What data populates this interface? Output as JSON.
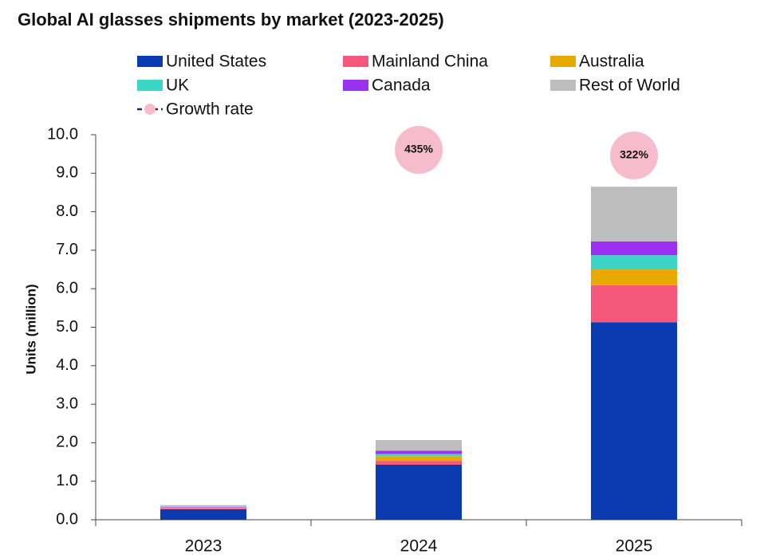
{
  "chart_data": {
    "type": "stacked-bar",
    "title": "Global AI glasses shipments by market (2023-2025)",
    "y_label": "Units (million)",
    "categories": [
      "2023",
      "2024",
      "2025"
    ],
    "series": [
      {
        "name": "United States",
        "color": "#0a3bb0",
        "values": [
          0.27,
          1.43,
          5.13
        ]
      },
      {
        "name": "Mainland China",
        "color": "#f5587a",
        "values": [
          0.02,
          0.1,
          0.96
        ]
      },
      {
        "name": "Australia",
        "color": "#e8aa00",
        "values": [
          0.01,
          0.12,
          0.41
        ]
      },
      {
        "name": "UK",
        "color": "#3dd6c6",
        "values": [
          0.01,
          0.06,
          0.37
        ]
      },
      {
        "name": "Canada",
        "color": "#9b30f0",
        "values": [
          0.01,
          0.08,
          0.36
        ]
      },
      {
        "name": "Rest of World",
        "color": "#bdbdbd",
        "values": [
          0.06,
          0.28,
          1.42
        ]
      }
    ],
    "growth": {
      "name": "Growth rate",
      "color": "#f7bccb",
      "values": [
        null,
        435,
        322
      ],
      "value_labels": [
        null,
        "435%",
        "322%"
      ]
    },
    "ylim": [
      0,
      10
    ],
    "yticks": [
      {
        "value": 0,
        "label": "0.0"
      },
      {
        "value": 1,
        "label": "1.0"
      },
      {
        "value": 2,
        "label": "2.0"
      },
      {
        "value": 3,
        "label": "3.0"
      },
      {
        "value": 4,
        "label": "4.0"
      },
      {
        "value": 5,
        "label": "5.0"
      },
      {
        "value": 6,
        "label": "6.0"
      },
      {
        "value": 7,
        "label": "7.0"
      },
      {
        "value": 8,
        "label": "8.0"
      },
      {
        "value": 9,
        "label": "9.0"
      },
      {
        "value": 10,
        "label": "10.0"
      }
    ]
  }
}
